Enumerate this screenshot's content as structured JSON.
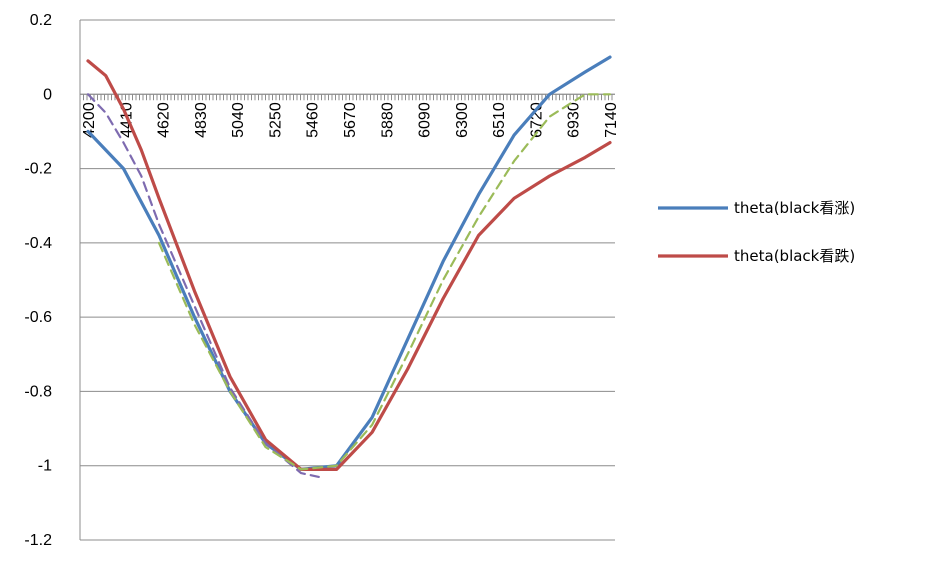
{
  "chart_data": {
    "type": "line",
    "title": "",
    "xlabel": "",
    "ylabel": "",
    "ylim": [
      -1.2,
      0.2
    ],
    "yticks": [
      0.2,
      0,
      -0.2,
      -0.4,
      -0.6,
      -0.8,
      -1,
      -1.2
    ],
    "xlim": [
      4200,
      7140
    ],
    "xticks": [
      4200,
      4410,
      4620,
      4830,
      5040,
      5250,
      5460,
      5670,
      5880,
      6090,
      6300,
      6510,
      6720,
      6930,
      7140
    ],
    "grid": "horizontal",
    "legend_position": "right",
    "series": [
      {
        "name": "theta(black看涨)",
        "color": "#4a7ebb",
        "style": "solid",
        "x": [
          4200,
          4400,
          4600,
          4800,
          5000,
          5200,
          5400,
          5600,
          5800,
          6000,
          6200,
          6400,
          6600,
          6800,
          7000,
          7140
        ],
        "y": [
          -0.1,
          -0.2,
          -0.38,
          -0.6,
          -0.8,
          -0.94,
          -1.01,
          -1.0,
          -0.87,
          -0.66,
          -0.45,
          -0.27,
          -0.11,
          0.0,
          0.06,
          0.1
        ]
      },
      {
        "name": "theta(black看跌)",
        "color": "#be4b48",
        "style": "solid",
        "x": [
          4200,
          4300,
          4400,
          4500,
          4600,
          4800,
          5000,
          5200,
          5400,
          5600,
          5800,
          6000,
          6200,
          6400,
          6600,
          6800,
          7000,
          7140
        ],
        "y": [
          0.09,
          0.05,
          -0.04,
          -0.15,
          -0.28,
          -0.53,
          -0.76,
          -0.93,
          -1.01,
          -1.01,
          -0.91,
          -0.74,
          -0.55,
          -0.38,
          -0.28,
          -0.22,
          -0.17,
          -0.13
        ]
      },
      {
        "color": "#7e6bb0",
        "style": "dashed",
        "x": [
          4200,
          4300,
          4400,
          4500,
          4600,
          4800,
          5000,
          5200,
          5400,
          5500
        ],
        "y": [
          0.0,
          -0.05,
          -0.13,
          -0.22,
          -0.35,
          -0.57,
          -0.79,
          -0.94,
          -1.02,
          -1.03
        ]
      },
      {
        "color": "#9bbb59",
        "style": "dashed",
        "x": [
          4600,
          4800,
          5000,
          5200,
          5400,
          5600,
          5800,
          6000,
          6200,
          6400,
          6600,
          6800,
          7000,
          7140
        ],
        "y": [
          -0.4,
          -0.62,
          -0.8,
          -0.95,
          -1.01,
          -1.0,
          -0.89,
          -0.7,
          -0.5,
          -0.33,
          -0.18,
          -0.06,
          0.0,
          0.0
        ]
      }
    ]
  }
}
